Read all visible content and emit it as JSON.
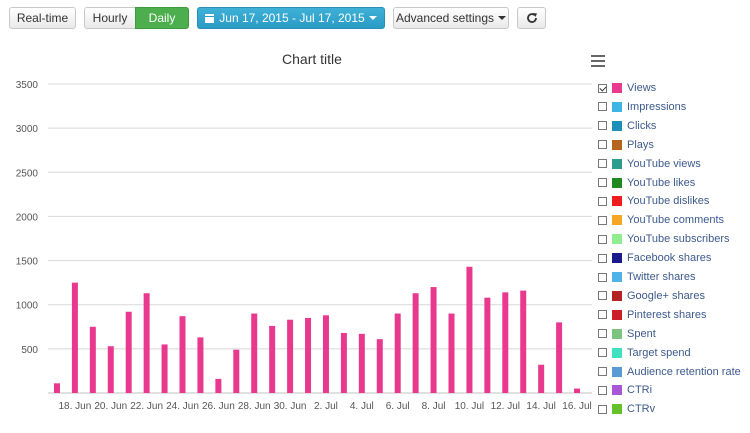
{
  "toolbar": {
    "realtime_label": "Real-time",
    "hourly_label": "Hourly",
    "daily_label": "Daily",
    "date_range": "Jun 17, 2015 - Jul 17, 2015",
    "advanced_label": "Advanced settings"
  },
  "chart_data": {
    "type": "bar",
    "title": "Chart title",
    "xlabel": "",
    "ylabel": "",
    "ylim": [
      0,
      3500
    ],
    "yticks": [
      500,
      1000,
      1500,
      2000,
      2500,
      3000,
      3500
    ],
    "grid": true,
    "legend_position": "right",
    "color": "#e8398f",
    "x_tick_labels": [
      "18. Jun",
      "20. Jun",
      "22. Jun",
      "24. Jun",
      "26. Jun",
      "28. Jun",
      "30. Jun",
      "2. Jul",
      "4. Jul",
      "6. Jul",
      "8. Jul",
      "10. Jul",
      "12. Jul",
      "14. Jul",
      "16. Jul"
    ],
    "series": [
      {
        "name": "Views",
        "values": [
          110,
          1250,
          750,
          530,
          920,
          1130,
          550,
          870,
          630,
          160,
          490,
          900,
          760,
          830,
          850,
          880,
          680,
          670,
          610,
          900,
          1130,
          1200,
          900,
          1430,
          1080,
          1140,
          1160,
          320,
          800,
          50
        ]
      }
    ]
  },
  "legend": [
    {
      "label": "Views",
      "color": "#e8398f",
      "checked": true
    },
    {
      "label": "Impressions",
      "color": "#3fb5e6",
      "checked": false
    },
    {
      "label": "Clicks",
      "color": "#1d8fb8",
      "checked": false
    },
    {
      "label": "Plays",
      "color": "#b5651d",
      "checked": false
    },
    {
      "label": "YouTube views",
      "color": "#2a9d8f",
      "checked": false
    },
    {
      "label": "YouTube likes",
      "color": "#1e8a1e",
      "checked": false
    },
    {
      "label": "YouTube dislikes",
      "color": "#ee1c1c",
      "checked": false
    },
    {
      "label": "YouTube comments",
      "color": "#f5a623",
      "checked": false
    },
    {
      "label": "YouTube subscribers",
      "color": "#90ee90",
      "checked": false
    },
    {
      "label": "Facebook shares",
      "color": "#1a1a8c",
      "checked": false
    },
    {
      "label": "Twitter shares",
      "color": "#4fb3ea",
      "checked": false
    },
    {
      "label": "Google+ shares",
      "color": "#b22222",
      "checked": false
    },
    {
      "label": "Pinterest shares",
      "color": "#cb2027",
      "checked": false
    },
    {
      "label": "Spent",
      "color": "#7bc47f",
      "checked": false
    },
    {
      "label": "Target spend",
      "color": "#40e0c0",
      "checked": false
    },
    {
      "label": "Audience retention rate",
      "color": "#5b9bd5",
      "checked": false
    },
    {
      "label": "CTRi",
      "color": "#a855d6",
      "checked": false
    },
    {
      "label": "CTRv",
      "color": "#66c02a",
      "checked": false
    }
  ]
}
